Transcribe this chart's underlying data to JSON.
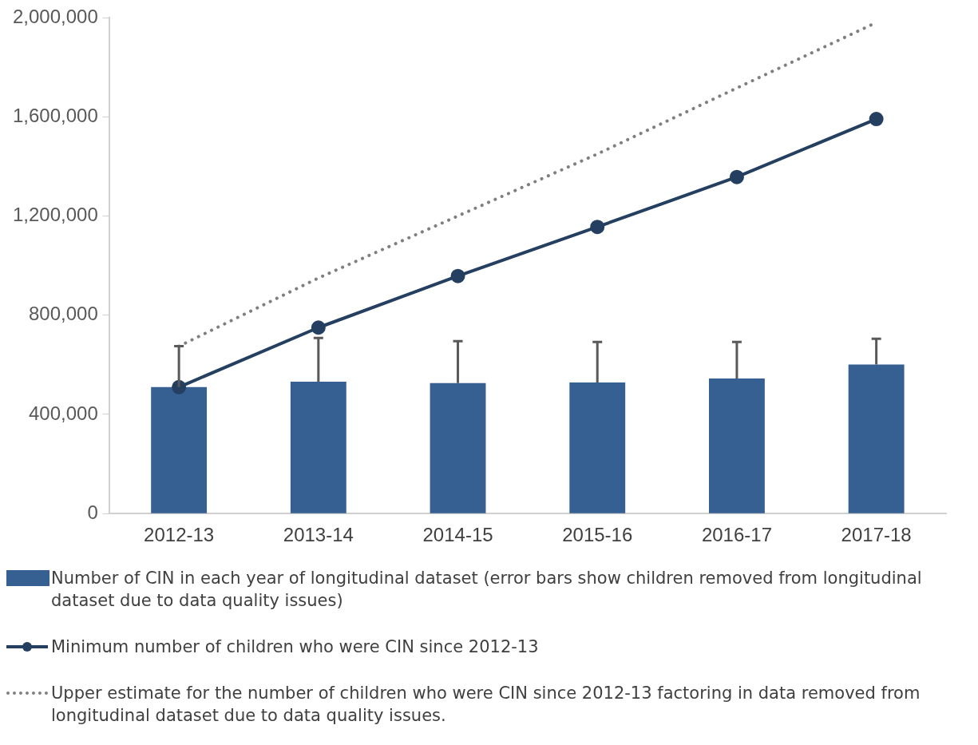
{
  "chart_data": {
    "type": "bar",
    "categories": [
      "2012-13",
      "2013-14",
      "2014-15",
      "2015-16",
      "2016-17",
      "2017-18"
    ],
    "ylim": [
      0,
      2000000
    ],
    "yticks": [
      {
        "value": 0,
        "label": "0"
      },
      {
        "value": 400000,
        "label": "400,000"
      },
      {
        "value": 800000,
        "label": "800,000"
      },
      {
        "value": 1200000,
        "label": "1,200,000"
      },
      {
        "value": 1600000,
        "label": "1,600,000"
      },
      {
        "value": 2000000,
        "label": "2,000,000"
      }
    ],
    "grid": false,
    "legend": "bottom",
    "series": [
      {
        "name": "Number of CIN in each year of longitudinal dataset (error bars show children removed from longitudinal dataset due to data quality issues)",
        "color": "#376092",
        "values": [
          510000,
          532000,
          526000,
          529000,
          545000,
          601000
        ],
        "errors": [
          [
            510000,
            675000
          ],
          [
            532000,
            708000
          ],
          [
            526000,
            695000
          ],
          [
            529000,
            692000
          ],
          [
            545000,
            692000
          ],
          [
            601000,
            705000
          ]
        ]
      },
      {
        "name": "Minimum number of children who were CIN since 2012-13",
        "type": "line",
        "color": "#243f60",
        "marker": "circle",
        "line_style": "solid",
        "values": [
          510000,
          750000,
          958000,
          1156000,
          1357000,
          1591000
        ]
      },
      {
        "name": "Upper estimate for the number of children who were CIN since 2012-13 factoring in data removed from longitudinal dataset due to data quality issues.",
        "type": "line",
        "color": "#7f7f7f",
        "marker": "none",
        "line_style": "dotted",
        "values": [
          675000,
          950000,
          1200000,
          1450000,
          1716000,
          1980000
        ]
      }
    ]
  }
}
